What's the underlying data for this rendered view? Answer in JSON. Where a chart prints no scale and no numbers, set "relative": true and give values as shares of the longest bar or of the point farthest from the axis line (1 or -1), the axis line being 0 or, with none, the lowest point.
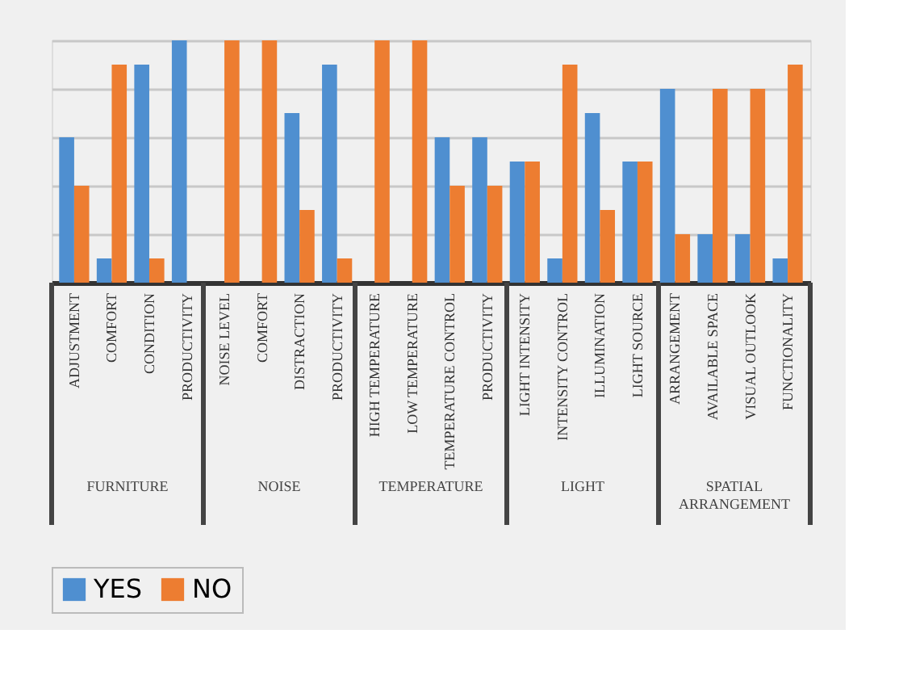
{
  "chart_data": {
    "type": "bar",
    "relative": true,
    "grid": "y",
    "legend": "bottom",
    "categories": [
      "ADJUSTMENT",
      "COMFORT",
      "CONDITION",
      "PRODUCTIVITY",
      "NOISE LEVEL",
      "COMFORT",
      "DISTRACTION",
      "PRODUCTIVITY",
      "HIGH TEMPERATURE",
      "LOW TEMPERATURE",
      "TEMPERATURE CONTROL",
      "PRODUCTIVITY",
      "LIGHT INTENSITY",
      "INTENSITY CONTROL",
      "ILLUMINATION",
      "LIGHT SOURCE",
      "ARRANGEMENT",
      "AVAILABLE SPACE",
      "VISUAL  OUTLOOK",
      "FUNCTIONALITY"
    ],
    "series": [
      {
        "name": "YES",
        "color": "#4f8fd0",
        "values": [
          0.6,
          0.1,
          0.9,
          1.0,
          0.0,
          0.0,
          0.7,
          0.9,
          0.0,
          0.0,
          0.6,
          0.6,
          0.5,
          0.1,
          0.7,
          0.5,
          0.8,
          0.2,
          0.2,
          0.1
        ]
      },
      {
        "name": "NO",
        "color": "#ed7d31",
        "values": [
          0.4,
          0.9,
          0.1,
          0.0,
          1.0,
          1.0,
          0.3,
          0.1,
          1.0,
          1.0,
          0.4,
          0.4,
          0.5,
          0.9,
          0.3,
          0.5,
          0.2,
          0.8,
          0.8,
          0.9
        ]
      }
    ],
    "annotations": [
      "FURNITURE",
      "NOISE",
      "TEMPERATURE",
      "LIGHT",
      "SPATIAL ARRANGEMENT"
    ]
  }
}
